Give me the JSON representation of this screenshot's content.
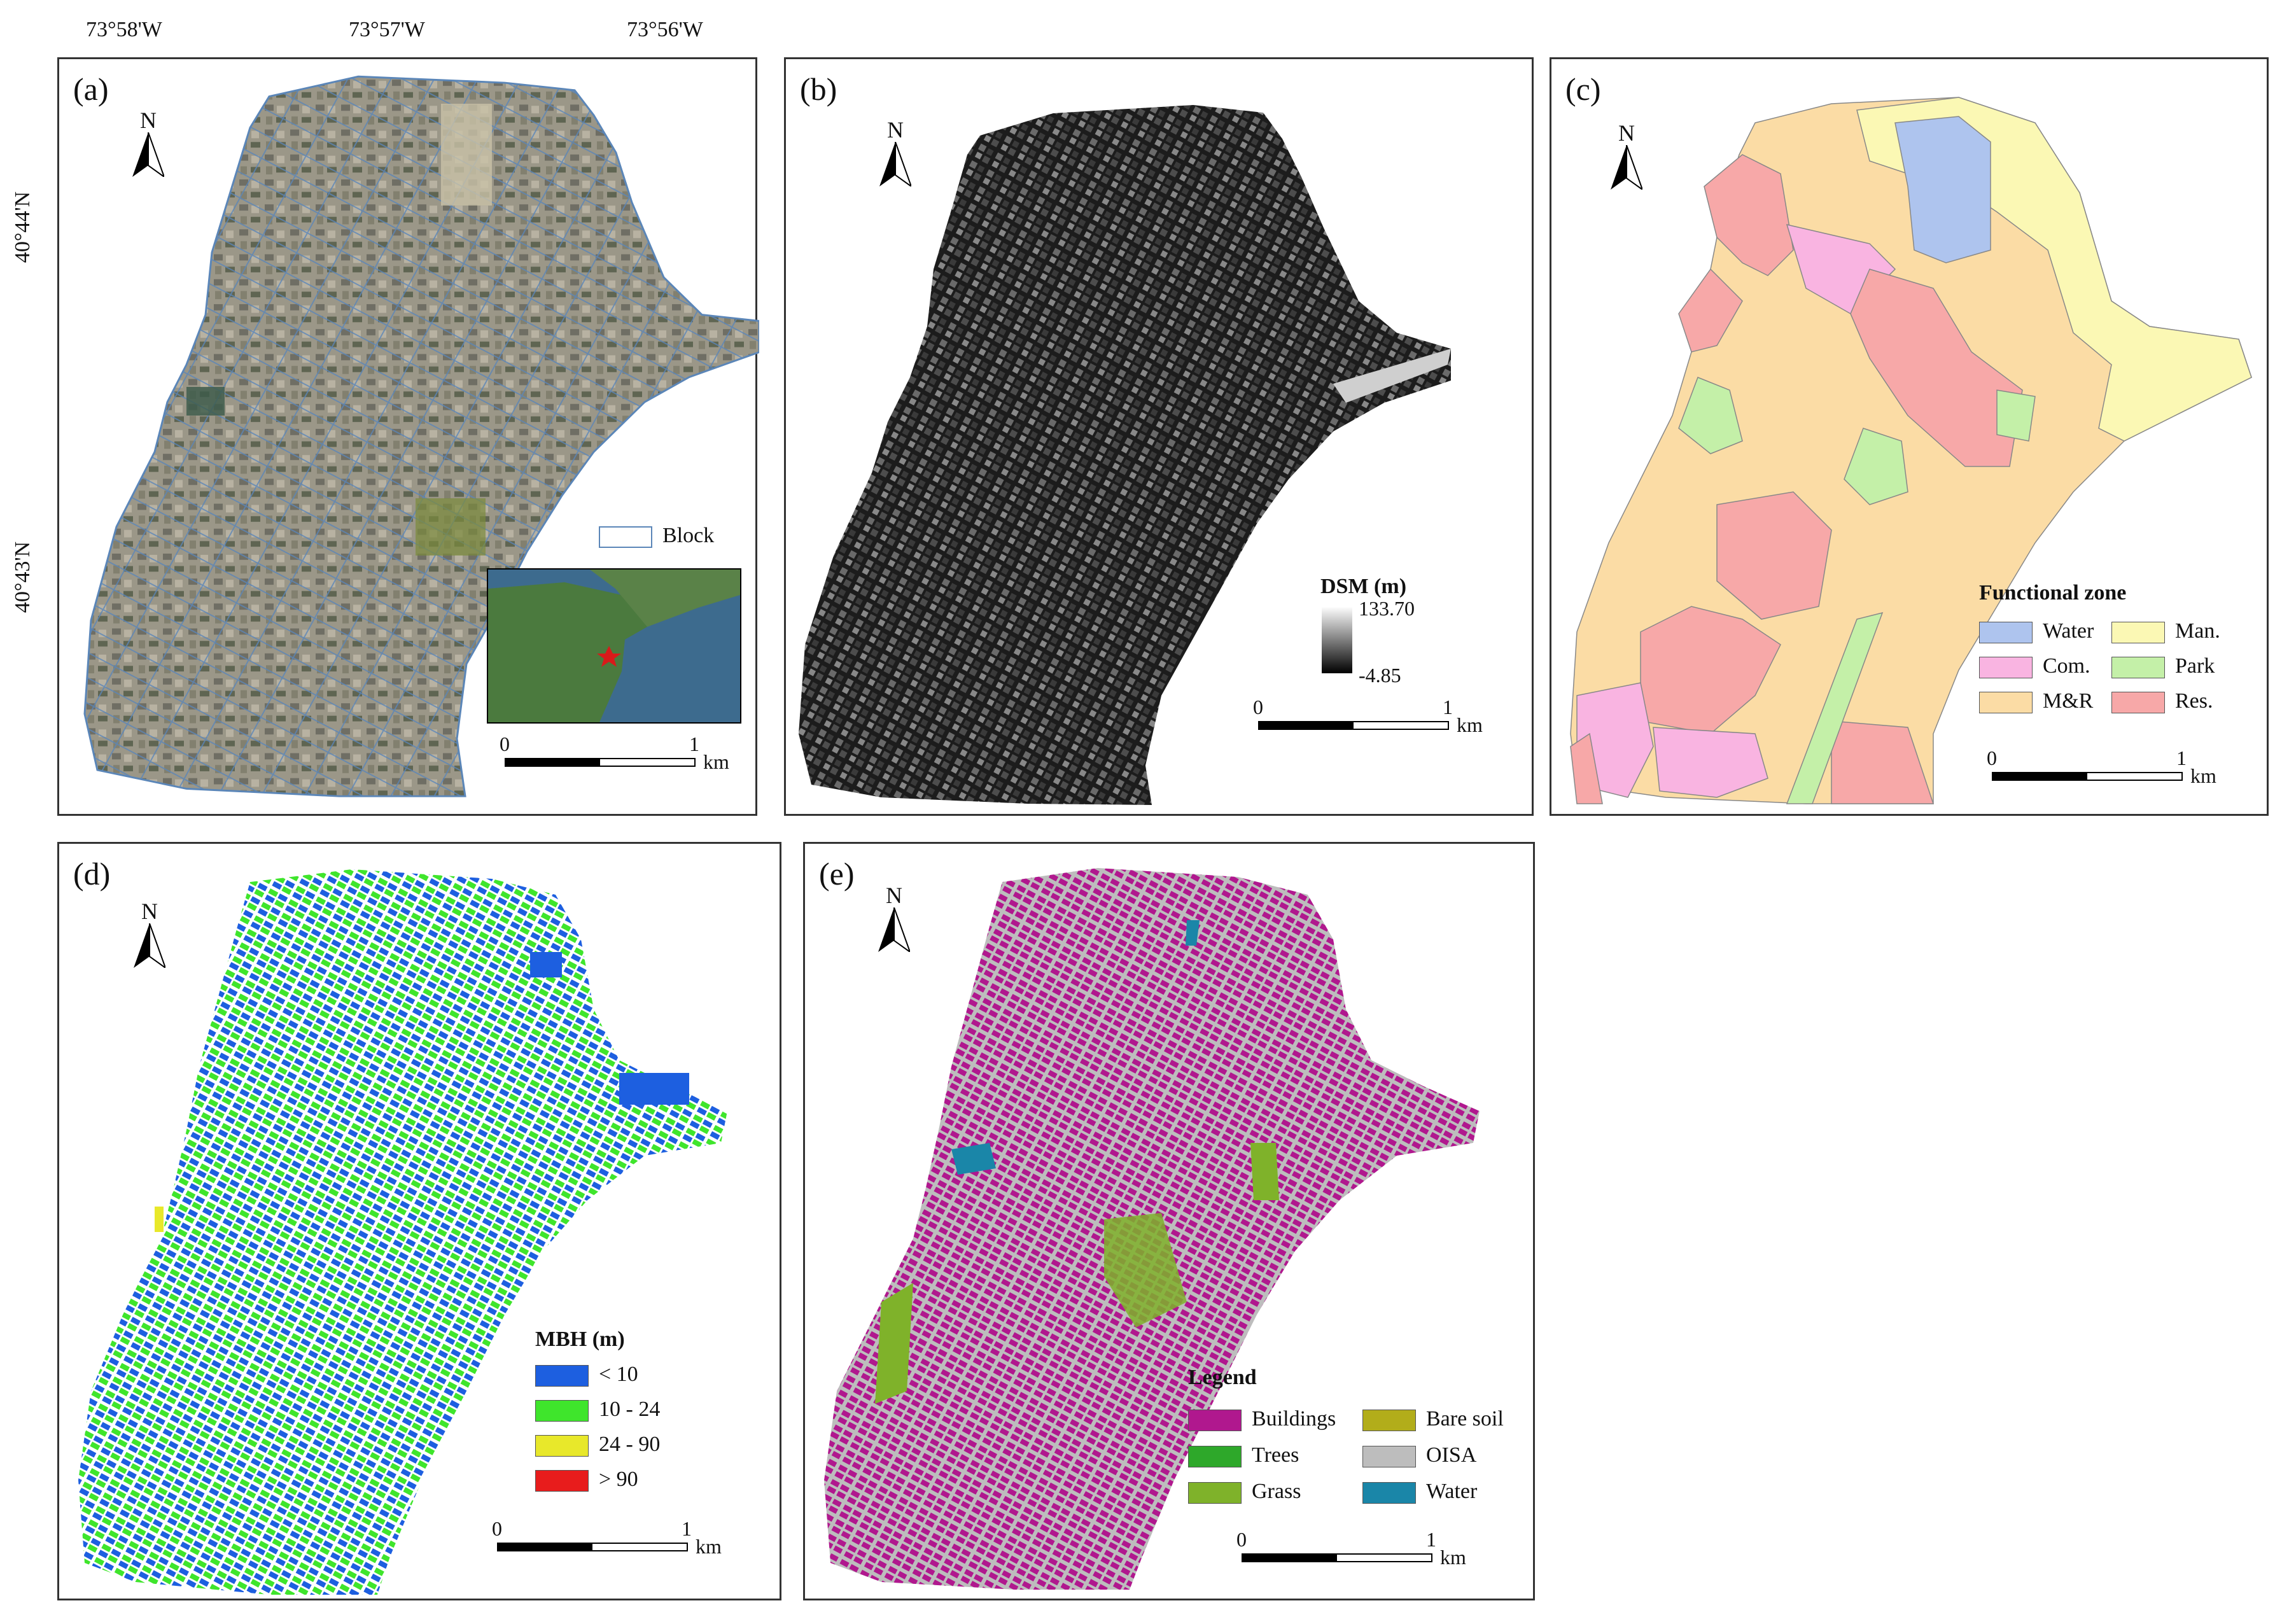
{
  "coordinates": {
    "longitudes": [
      "73°58'W",
      "73°57'W",
      "73°56'W"
    ],
    "latitudes": [
      "40°44'N",
      "40°43'N"
    ]
  },
  "north_label": "N",
  "scale_bar": {
    "start": "0",
    "end": "1",
    "unit": "km"
  },
  "panels": {
    "a": {
      "label": "(a)",
      "legend_label": "Block",
      "block_color": "#5b86b8"
    },
    "b": {
      "label": "(b)",
      "legend_title": "DSM (m)",
      "max": "133.70",
      "min": "-4.85"
    },
    "c": {
      "label": "(c)",
      "legend_title": "Functional zone",
      "items": [
        {
          "label": "Water",
          "color": "#aec4ee"
        },
        {
          "label": "Man.",
          "color": "#fbf8b4"
        },
        {
          "label": "Com.",
          "color": "#f9b4e1"
        },
        {
          "label": "Park",
          "color": "#c4f0a8"
        },
        {
          "label": "M&R",
          "color": "#fbdca5"
        },
        {
          "label": "Res.",
          "color": "#f7a8a8"
        }
      ]
    },
    "d": {
      "label": "(d)",
      "legend_title": "MBH (m)",
      "items": [
        {
          "label": "< 10",
          "color": "#1d5fe0"
        },
        {
          "label": "10 - 24",
          "color": "#3fe52c"
        },
        {
          "label": "24 - 90",
          "color": "#e8e82a"
        },
        {
          "label": "> 90",
          "color": "#e81c1c"
        }
      ]
    },
    "e": {
      "label": "(e)",
      "legend_title": "Legend",
      "items": [
        {
          "label": "Buildings",
          "color": "#b0188e"
        },
        {
          "label": "Bare soil",
          "color": "#b2ad1a"
        },
        {
          "label": "Trees",
          "color": "#2ea82a"
        },
        {
          "label": "OISA",
          "color": "#bdbdbd"
        },
        {
          "label": "Grass",
          "color": "#7fb22a"
        },
        {
          "label": "Water",
          "color": "#1a86a8"
        }
      ]
    }
  }
}
